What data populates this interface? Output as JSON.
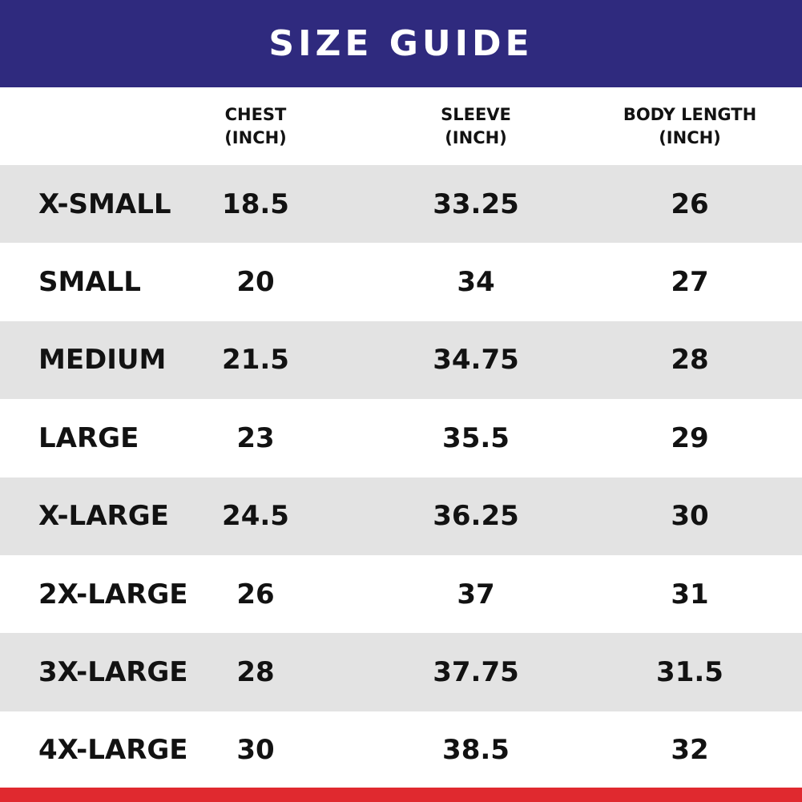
{
  "title": "SIZE GUIDE",
  "columns": [
    {
      "line1": "CHEST",
      "line2": "(INCH)"
    },
    {
      "line1": "SLEEVE",
      "line2": "(INCH)"
    },
    {
      "line1": "BODY LENGTH",
      "line2": "(INCH)"
    }
  ],
  "rows": [
    {
      "size": "X-SMALL",
      "chest": "18.5",
      "sleeve": "33.25",
      "body": "26"
    },
    {
      "size": "SMALL",
      "chest": "20",
      "sleeve": "34",
      "body": "27"
    },
    {
      "size": "MEDIUM",
      "chest": "21.5",
      "sleeve": "34.75",
      "body": "28"
    },
    {
      "size": "LARGE",
      "chest": "23",
      "sleeve": "35.5",
      "body": "29"
    },
    {
      "size": "X-LARGE",
      "chest": "24.5",
      "sleeve": "36.25",
      "body": "30"
    },
    {
      "size": "2X-LARGE",
      "chest": "26",
      "sleeve": "37",
      "body": "31"
    },
    {
      "size": "3X-LARGE",
      "chest": "28",
      "sleeve": "37.75",
      "body": "31.5"
    },
    {
      "size": "4X-LARGE",
      "chest": "30",
      "sleeve": "38.5",
      "body": "32"
    }
  ],
  "colors": {
    "banner": "#2f2a7e",
    "row_shade": "#e3e3e3",
    "accent_bar": "#e0292f",
    "text": "#121212"
  }
}
